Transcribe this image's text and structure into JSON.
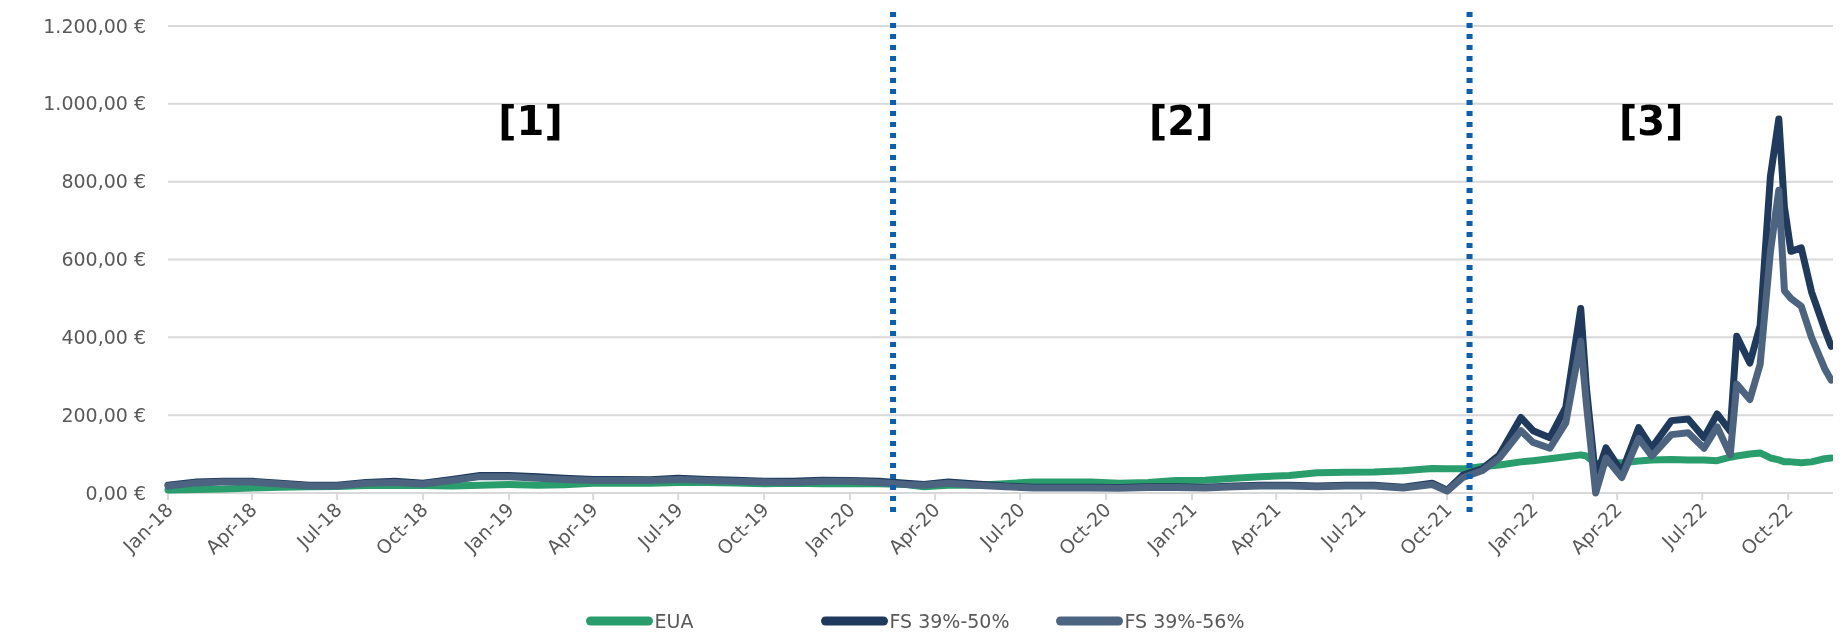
{
  "chart_data": {
    "type": "line",
    "x": [
      "2018-01-01",
      "2018-02-01",
      "2018-03-01",
      "2018-04-01",
      "2018-05-01",
      "2018-06-01",
      "2018-07-01",
      "2018-08-01",
      "2018-09-01",
      "2018-10-01",
      "2018-11-01",
      "2018-12-01",
      "2019-01-01",
      "2019-02-01",
      "2019-03-01",
      "2019-04-01",
      "2019-05-01",
      "2019-06-01",
      "2019-07-01",
      "2019-08-01",
      "2019-09-01",
      "2019-10-01",
      "2019-11-01",
      "2019-12-01",
      "2020-01-01",
      "2020-02-01",
      "2020-03-01",
      "2020-03-20",
      "2020-04-15",
      "2020-05-15",
      "2020-06-15",
      "2020-07-15",
      "2020-08-15",
      "2020-09-15",
      "2020-10-15",
      "2020-11-15",
      "2020-12-15",
      "2021-01-15",
      "2021-02-15",
      "2021-03-15",
      "2021-04-15",
      "2021-05-15",
      "2021-06-15",
      "2021-07-15",
      "2021-08-15",
      "2021-09-15",
      "2021-10-01",
      "2021-10-18",
      "2021-11-08",
      "2021-11-26",
      "2021-12-19",
      "2022-01-01",
      "2022-01-19",
      "2022-02-05",
      "2022-02-21",
      "2022-02-27",
      "2022-03-09",
      "2022-03-20",
      "2022-04-06",
      "2022-04-24",
      "2022-05-08",
      "2022-05-29",
      "2022-06-16",
      "2022-07-03",
      "2022-07-17",
      "2022-07-31",
      "2022-08-07",
      "2022-08-21",
      "2022-09-01",
      "2022-09-12",
      "2022-09-21",
      "2022-09-27",
      "2022-10-04",
      "2022-10-15",
      "2022-10-26",
      "2022-11-09",
      "2022-11-16"
    ],
    "series": [
      {
        "name": "EUA",
        "color": "#2a9d6c",
        "values": [
          8,
          9,
          10,
          13,
          15,
          16,
          17,
          19,
          20,
          19,
          18,
          20,
          22,
          20,
          21,
          25,
          25,
          25,
          27,
          27,
          26,
          24,
          25,
          24,
          24,
          24,
          22,
          16,
          20,
          20,
          24,
          28,
          28,
          28,
          25,
          27,
          32,
          33,
          38,
          42,
          45,
          52,
          53,
          54,
          57,
          63,
          62,
          62,
          68,
          72,
          80,
          83,
          88,
          93,
          98,
          95,
          75,
          78,
          78,
          82,
          85,
          86,
          85,
          85,
          83,
          92,
          95,
          100,
          103,
          90,
          85,
          80,
          80,
          78,
          80,
          88,
          90
        ]
      },
      {
        "name": "FS 39%-50%",
        "color": "#1f3a5c",
        "values": [
          20,
          28,
          30,
          30,
          25,
          20,
          20,
          27,
          30,
          25,
          35,
          45,
          45,
          42,
          38,
          35,
          35,
          34,
          38,
          35,
          33,
          30,
          30,
          33,
          32,
          30,
          25,
          22,
          28,
          23,
          18,
          15,
          15,
          15,
          14,
          16,
          16,
          15,
          18,
          20,
          20,
          18,
          20,
          20,
          15,
          25,
          7,
          46,
          63,
          98,
          194,
          160,
          142,
          220,
          474,
          272,
          37,
          116,
          54,
          168,
          116,
          186,
          190,
          142,
          203,
          159,
          403,
          334,
          430,
          813,
          961,
          735,
          621,
          630,
          517,
          421,
          377
        ]
      },
      {
        "name": "FS 39%-56%",
        "color": "#4d6480",
        "values": [
          18,
          26,
          28,
          28,
          23,
          18,
          18,
          25,
          27,
          23,
          32,
          42,
          42,
          38,
          35,
          32,
          33,
          32,
          35,
          32,
          30,
          28,
          27,
          30,
          30,
          27,
          22,
          20,
          25,
          20,
          16,
          13,
          13,
          13,
          12,
          14,
          14,
          13,
          16,
          18,
          18,
          16,
          18,
          18,
          13,
          22,
          5,
          40,
          58,
          90,
          160,
          130,
          115,
          180,
          390,
          230,
          0,
          90,
          40,
          140,
          95,
          150,
          155,
          115,
          170,
          98,
          280,
          240,
          330,
          620,
          778,
          520,
          500,
          480,
          400,
          320,
          290
        ]
      }
    ],
    "xlim": [
      "2018-01-01",
      "2022-11-18"
    ],
    "xticks": [
      {
        "value": "2018-01-01",
        "label": "Jan-18"
      },
      {
        "value": "2018-04-01",
        "label": "Apr-18"
      },
      {
        "value": "2018-07-01",
        "label": "Jul-18"
      },
      {
        "value": "2018-10-01",
        "label": "Oct-18"
      },
      {
        "value": "2019-01-01",
        "label": "Jan-19"
      },
      {
        "value": "2019-04-01",
        "label": "Apr-19"
      },
      {
        "value": "2019-07-01",
        "label": "Jul-19"
      },
      {
        "value": "2019-10-01",
        "label": "Oct-19"
      },
      {
        "value": "2020-01-01",
        "label": "Jan-20"
      },
      {
        "value": "2020-04-01",
        "label": "Apr-20"
      },
      {
        "value": "2020-07-01",
        "label": "Jul-20"
      },
      {
        "value": "2020-10-01",
        "label": "Oct-20"
      },
      {
        "value": "2021-01-01",
        "label": "Jan-21"
      },
      {
        "value": "2021-04-01",
        "label": "Apr-21"
      },
      {
        "value": "2021-07-01",
        "label": "Jul-21"
      },
      {
        "value": "2021-10-01",
        "label": "Oct-21"
      },
      {
        "value": "2022-01-01",
        "label": "Jan-22"
      },
      {
        "value": "2022-04-01",
        "label": "Apr-22"
      },
      {
        "value": "2022-07-01",
        "label": "Jul-22"
      },
      {
        "value": "2022-10-01",
        "label": "Oct-22"
      }
    ],
    "ylim": [
      0,
      1200
    ],
    "yticks": [
      {
        "value": 0,
        "label": "0,00 €"
      },
      {
        "value": 200,
        "label": "200,00 €"
      },
      {
        "value": 400,
        "label": "400,00 €"
      },
      {
        "value": 600,
        "label": "600,00 €"
      },
      {
        "value": 800,
        "label": "800,00 €"
      },
      {
        "value": 1000,
        "label": "1.000,00 €"
      },
      {
        "value": 1200,
        "label": "1.200,00 €"
      }
    ],
    "grid": "y",
    "legend": "bottom",
    "ref_lines": [
      {
        "axis": "x",
        "value": "2020-02-16",
        "color": "#0a5fb0",
        "line_style": "dotted"
      },
      {
        "axis": "x",
        "value": "2021-10-25",
        "color": "#0a5fb0",
        "line_style": "dotted"
      }
    ],
    "annotations": [
      "[1]",
      "[2]",
      "[3]"
    ]
  }
}
